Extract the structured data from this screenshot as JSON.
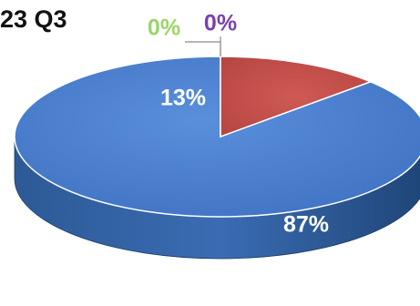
{
  "chart_data": {
    "type": "pie",
    "title": "23 Q3",
    "values": [
      87,
      13,
      0,
      0
    ],
    "labels": [
      "87%",
      "13%",
      "0%",
      "0%"
    ],
    "colors": [
      "#4a7ecf",
      "#c0504d",
      "#9bd46a",
      "#7a3fb0"
    ],
    "label_colors": [
      "#ffffff",
      "#ffffff",
      "#9bd46a",
      "#7a3fb0"
    ],
    "style": "3d",
    "legend": "none"
  }
}
